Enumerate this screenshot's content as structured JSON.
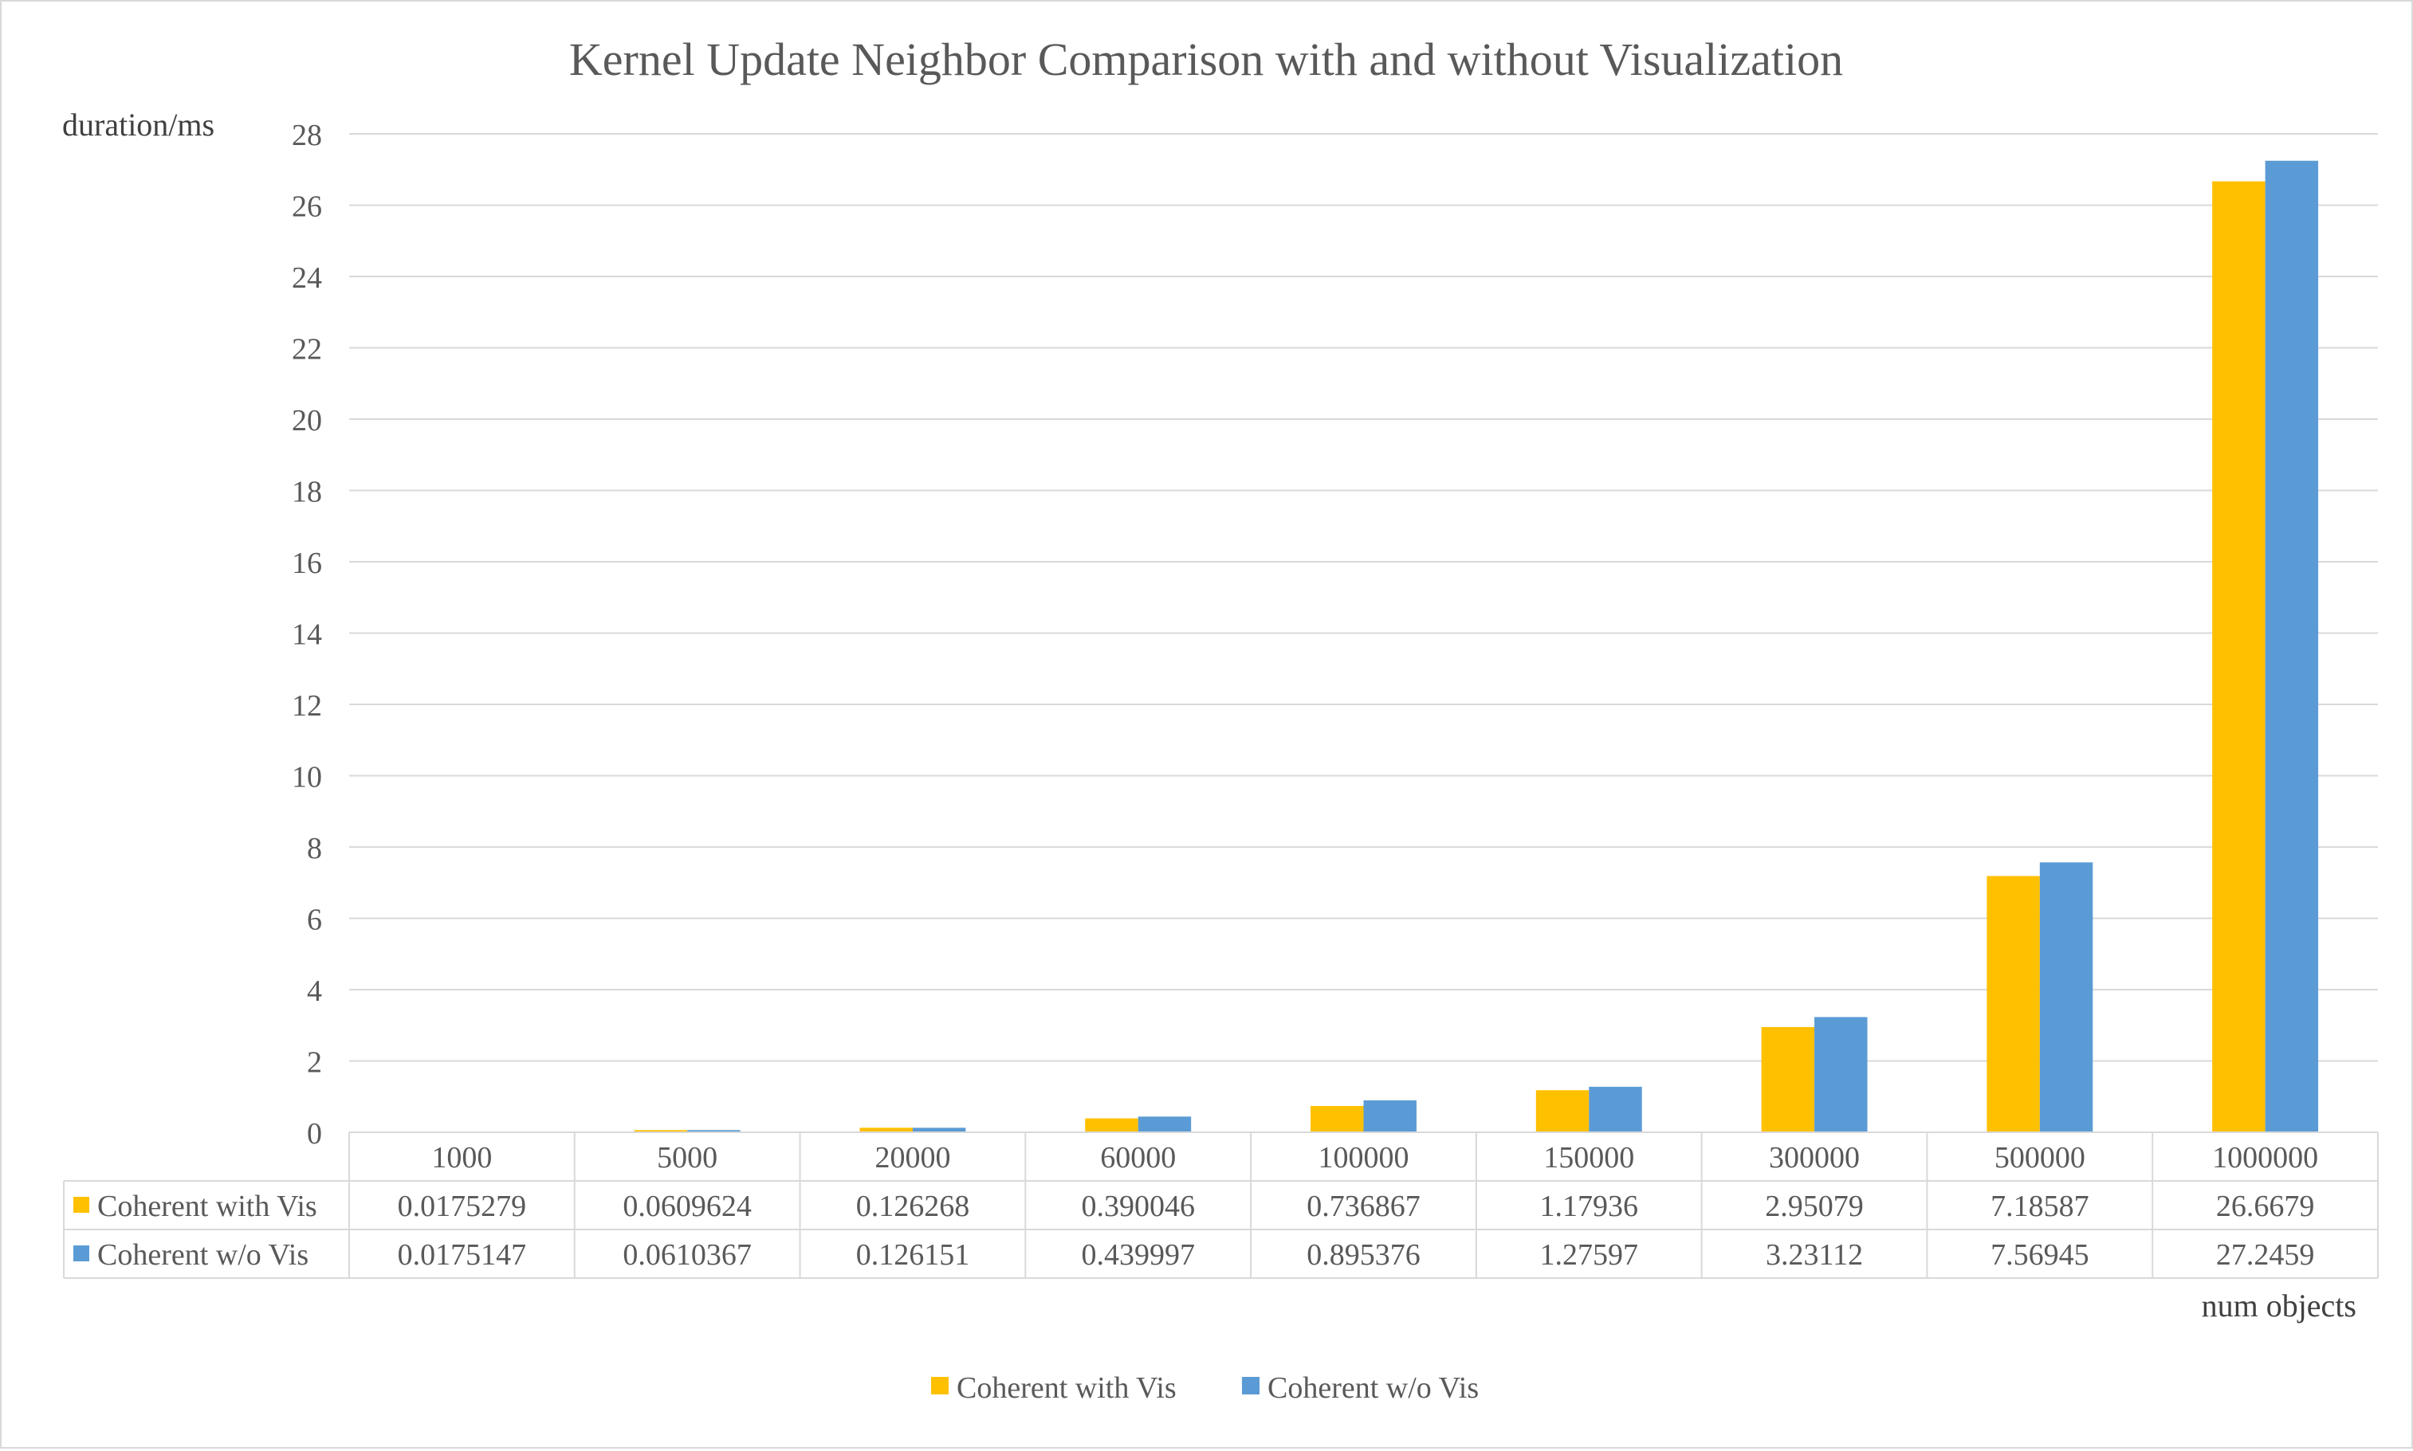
{
  "chart_data": {
    "type": "bar",
    "title": "Kernel Update Neighbor Comparison with and without Visualization",
    "ylabel": "duration/ms",
    "xlabel": "num objects",
    "categories": [
      "1000",
      "5000",
      "20000",
      "60000",
      "100000",
      "150000",
      "300000",
      "500000",
      "1000000"
    ],
    "series": [
      {
        "name": "Coherent with Vis",
        "color": "#FFC000",
        "values": [
          0.0175279,
          0.0609624,
          0.126268,
          0.390046,
          0.736867,
          1.17936,
          2.95079,
          7.18587,
          26.6679
        ],
        "labels": [
          "0.0175279",
          "0.0609624",
          "0.126268",
          "0.390046",
          "0.736867",
          "1.17936",
          "2.95079",
          "7.18587",
          "26.6679"
        ]
      },
      {
        "name": "Coherent w/o Vis",
        "color": "#5B9BD5",
        "values": [
          0.0175147,
          0.0610367,
          0.126151,
          0.439997,
          0.895376,
          1.27597,
          3.23112,
          7.56945,
          27.2459
        ],
        "labels": [
          "0.0175147",
          "0.0610367",
          "0.126151",
          "0.439997",
          "0.895376",
          "1.27597",
          "3.23112",
          "7.56945",
          "27.2459"
        ]
      }
    ],
    "ylim": [
      0,
      28
    ],
    "yticks": [
      "0",
      "2",
      "4",
      "6",
      "8",
      "10",
      "12",
      "14",
      "16",
      "18",
      "20",
      "22",
      "24",
      "26",
      "28"
    ],
    "grid": true,
    "legend_position": "bottom",
    "data_table": true
  }
}
